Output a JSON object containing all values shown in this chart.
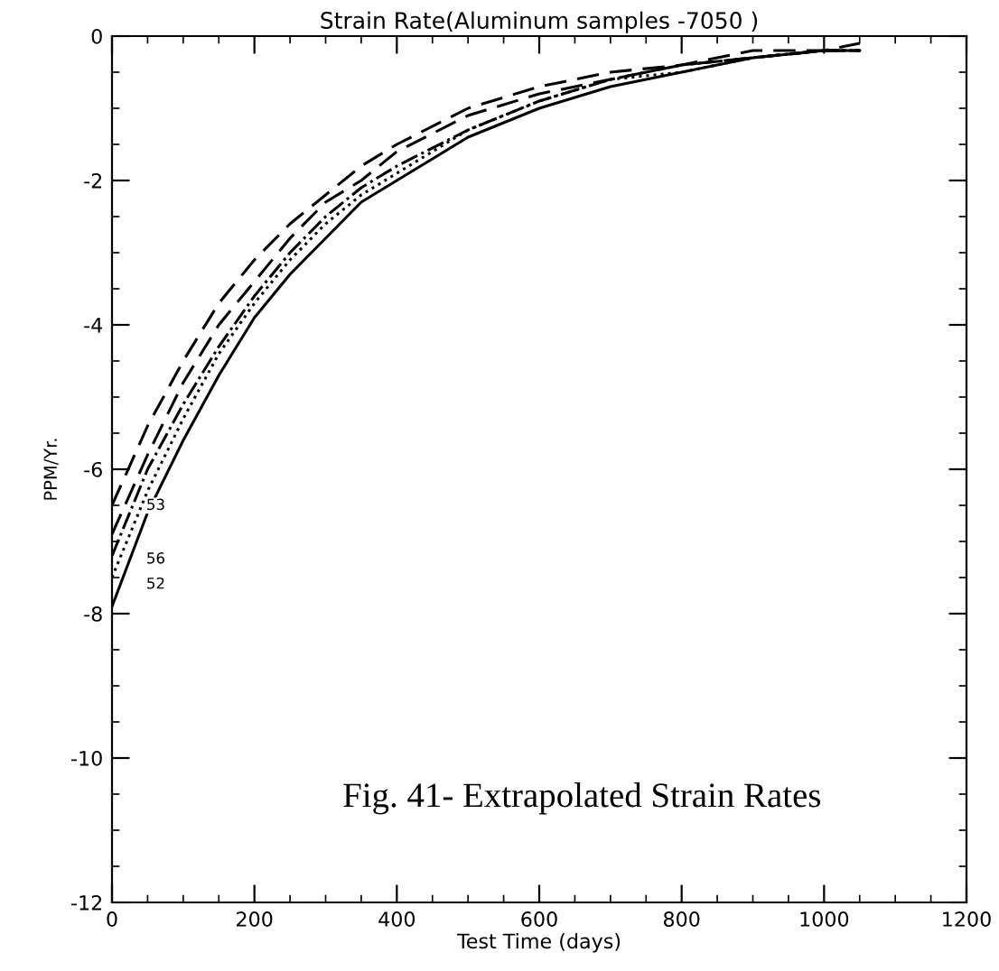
{
  "chart_data": {
    "type": "line",
    "title": "Strain Rate(Aluminum samples -7050 )",
    "xlabel": "Test Time (days)",
    "ylabel": "PPM/Yr.",
    "x": [
      0,
      50,
      100,
      150,
      200,
      250,
      300,
      350,
      400,
      500,
      600,
      700,
      800,
      900,
      1000,
      1050
    ],
    "series": [
      {
        "color": "#000000",
        "line_style": "dashed",
        "values": [
          -6.5,
          -5.4,
          -4.5,
          -3.7,
          -3.1,
          -2.6,
          -2.2,
          -1.8,
          -1.5,
          -1.0,
          -0.7,
          -0.5,
          -0.4,
          -0.2,
          -0.2,
          -0.1
        ]
      },
      {
        "color": "#000000",
        "line_style": "dashed",
        "values": [
          -6.9,
          -5.8,
          -4.8,
          -4.0,
          -3.4,
          -2.8,
          -2.3,
          -2.0,
          -1.6,
          -1.1,
          -0.8,
          -0.6,
          -0.4,
          -0.3,
          -0.2,
          -0.2
        ]
      },
      {
        "color": "#000000",
        "line_style": "dashdot",
        "values": [
          -7.2,
          -6.0,
          -5.1,
          -4.3,
          -3.6,
          -3.0,
          -2.5,
          -2.1,
          -1.8,
          -1.3,
          -0.9,
          -0.6,
          -0.4,
          -0.3,
          -0.2,
          -0.2
        ]
      },
      {
        "color": "#000000",
        "line_style": "dotted",
        "values": [
          -7.5,
          -6.3,
          -5.3,
          -4.4,
          -3.7,
          -3.1,
          -2.6,
          -2.2,
          -1.9,
          -1.3,
          -0.9,
          -0.6,
          -0.5,
          -0.3,
          -0.2,
          -0.2
        ]
      },
      {
        "color": "#000000",
        "line_style": "solid",
        "values": [
          -7.9,
          -6.6,
          -5.6,
          -4.7,
          -3.9,
          -3.3,
          -2.8,
          -2.3,
          -2.0,
          -1.4,
          -1.0,
          -0.7,
          -0.5,
          -0.3,
          -0.2,
          -0.2
        ]
      }
    ],
    "xlim": [
      0,
      1200
    ],
    "ylim": [
      -12,
      0
    ],
    "xticks": [
      0,
      200,
      400,
      600,
      800,
      1000,
      1200
    ],
    "yticks": [
      -12,
      -10,
      -8,
      -6,
      -4,
      -2,
      0
    ],
    "grid": false,
    "legend": false,
    "marker": "none",
    "annotations": [
      "53",
      "56",
      "52",
      "Fig. 41- Extrapolated Strain Rates"
    ]
  }
}
